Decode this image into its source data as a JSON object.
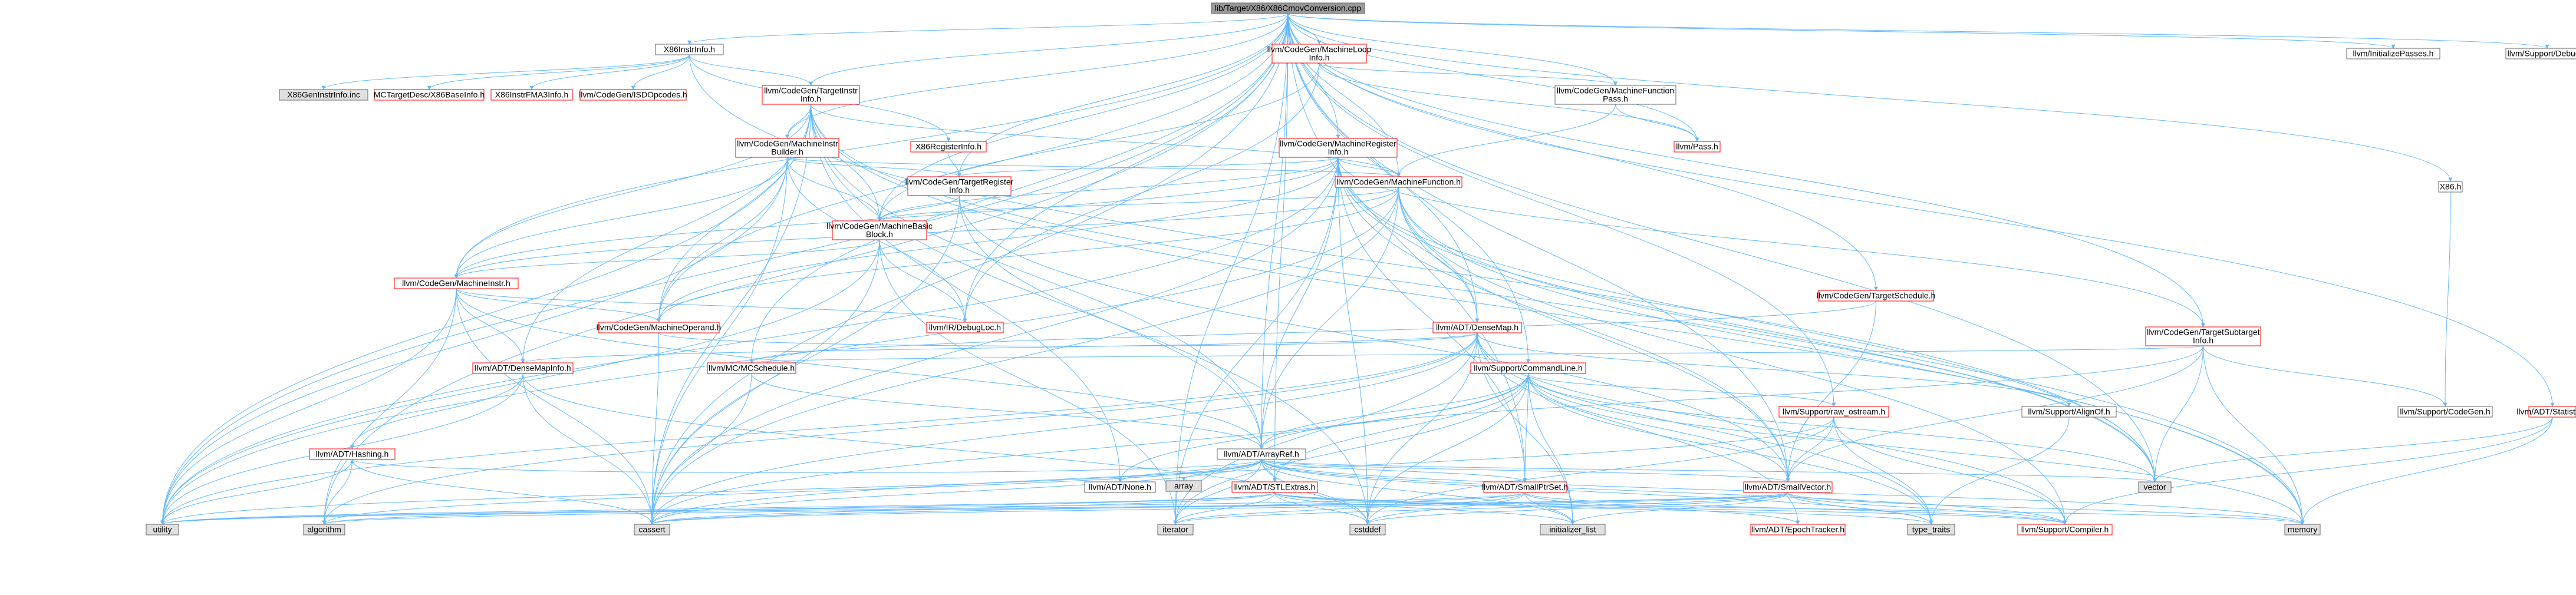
{
  "graph": {
    "root": "lib/Target/X86/X86CmovConversion.cpp",
    "colors": {
      "edge": "#63b8ff",
      "root_fill": "#999999",
      "root_border": "#666666",
      "node_fill": "#ffffff",
      "external_fill": "#e0e0e0",
      "border_normal": "#666666",
      "border_truncated": "#ff0000"
    },
    "nodes": [
      {
        "id": "root",
        "label": "lib/Target/X86/X86CmovConversion.cpp",
        "kind": "root"
      },
      {
        "id": "x86instrinfo",
        "label": "X86InstrInfo.h",
        "kind": "normal"
      },
      {
        "id": "mlinfo",
        "label": "llvm/CodeGen/MachineLoop\nInfo.h",
        "kind": "truncated"
      },
      {
        "id": "initpasses",
        "label": "llvm/InitializePasses.h",
        "kind": "normal"
      },
      {
        "id": "debug",
        "label": "llvm/Support/Debug.h",
        "kind": "normal"
      },
      {
        "id": "genincinc",
        "label": "X86GenInstrInfo.inc",
        "kind": "external"
      },
      {
        "id": "x86baseinfo",
        "label": "MCTargetDesc/X86BaseInfo.h",
        "kind": "truncated"
      },
      {
        "id": "x86fma",
        "label": "X86InstrFMA3Info.h",
        "kind": "truncated"
      },
      {
        "id": "isdopc",
        "label": "llvm/CodeGen/ISDOpcodes.h",
        "kind": "truncated"
      },
      {
        "id": "tii",
        "label": "llvm/CodeGen/TargetInstr\nInfo.h",
        "kind": "truncated"
      },
      {
        "id": "mfp",
        "label": "llvm/CodeGen/MachineFunction\nPass.h",
        "kind": "normal"
      },
      {
        "id": "pass",
        "label": "llvm/Pass.h",
        "kind": "truncated"
      },
      {
        "id": "mrinfo",
        "label": "llvm/CodeGen/MachineRegister\nInfo.h",
        "kind": "truncated"
      },
      {
        "id": "x86reginfo",
        "label": "X86RegisterInfo.h",
        "kind": "truncated"
      },
      {
        "id": "mib",
        "label": "llvm/CodeGen/MachineInstr\nBuilder.h",
        "kind": "truncated"
      },
      {
        "id": "tri",
        "label": "llvm/CodeGen/TargetRegister\nInfo.h",
        "kind": "truncated"
      },
      {
        "id": "mf",
        "label": "llvm/CodeGen/MachineFunction.h",
        "kind": "truncated"
      },
      {
        "id": "x86h",
        "label": "X86.h",
        "kind": "normal"
      },
      {
        "id": "mbb",
        "label": "llvm/CodeGen/MachineBasic\nBlock.h",
        "kind": "truncated"
      },
      {
        "id": "mi",
        "label": "llvm/CodeGen/MachineInstr.h",
        "kind": "truncated"
      },
      {
        "id": "tsched",
        "label": "llvm/CodeGen/TargetSchedule.h",
        "kind": "truncated"
      },
      {
        "id": "mo",
        "label": "llvm/CodeGen/MachineOperand.h",
        "kind": "truncated"
      },
      {
        "id": "debugloc",
        "label": "llvm/IR/DebugLoc.h",
        "kind": "truncated"
      },
      {
        "id": "densemap",
        "label": "llvm/ADT/DenseMap.h",
        "kind": "truncated"
      },
      {
        "id": "tsi",
        "label": "llvm/CodeGen/TargetSubtarget\nInfo.h",
        "kind": "truncated"
      },
      {
        "id": "dmi",
        "label": "llvm/ADT/DenseMapInfo.h",
        "kind": "truncated"
      },
      {
        "id": "mcsched",
        "label": "llvm/MC/MCSchedule.h",
        "kind": "truncated"
      },
      {
        "id": "cmdline",
        "label": "llvm/Support/CommandLine.h",
        "kind": "truncated"
      },
      {
        "id": "rawos",
        "label": "llvm/Support/raw_ostream.h",
        "kind": "truncated"
      },
      {
        "id": "alignof",
        "label": "llvm/Support/AlignOf.h",
        "kind": "normal"
      },
      {
        "id": "codegen",
        "label": "llvm/Support/CodeGen.h",
        "kind": "normal"
      },
      {
        "id": "statistic",
        "label": "llvm/ADT/Statistic.h",
        "kind": "truncated"
      },
      {
        "id": "hashing",
        "label": "llvm/ADT/Hashing.h",
        "kind": "truncated"
      },
      {
        "id": "arrayref",
        "label": "llvm/ADT/ArrayRef.h",
        "kind": "normal"
      },
      {
        "id": "array",
        "label": "array",
        "kind": "external"
      },
      {
        "id": "none",
        "label": "llvm/ADT/None.h",
        "kind": "normal"
      },
      {
        "id": "stlextras",
        "label": "llvm/ADT/STLExtras.h",
        "kind": "truncated"
      },
      {
        "id": "sptrset",
        "label": "llvm/ADT/SmallPtrSet.h",
        "kind": "truncated"
      },
      {
        "id": "svector",
        "label": "llvm/ADT/SmallVector.h",
        "kind": "truncated"
      },
      {
        "id": "vector",
        "label": "vector",
        "kind": "external"
      },
      {
        "id": "utility",
        "label": "utility",
        "kind": "external"
      },
      {
        "id": "algorithm",
        "label": "algorithm",
        "kind": "external"
      },
      {
        "id": "cassert",
        "label": "cassert",
        "kind": "external"
      },
      {
        "id": "iterator",
        "label": "iterator",
        "kind": "external"
      },
      {
        "id": "cstddef",
        "label": "cstddef",
        "kind": "external"
      },
      {
        "id": "initlist",
        "label": "initializer_list",
        "kind": "external"
      },
      {
        "id": "epoch",
        "label": "llvm/ADT/EpochTracker.h",
        "kind": "truncated"
      },
      {
        "id": "typetraits",
        "label": "type_traits",
        "kind": "external"
      },
      {
        "id": "compiler",
        "label": "llvm/Support/Compiler.h",
        "kind": "truncated"
      },
      {
        "id": "memory",
        "label": "memory",
        "kind": "external"
      }
    ],
    "edges": [
      [
        "root",
        "x86instrinfo"
      ],
      [
        "root",
        "mlinfo"
      ],
      [
        "root",
        "initpasses"
      ],
      [
        "root",
        "debug"
      ],
      [
        "root",
        "tii"
      ],
      [
        "root",
        "mfp"
      ],
      [
        "root",
        "pass"
      ],
      [
        "root",
        "mrinfo"
      ],
      [
        "root",
        "mib"
      ],
      [
        "root",
        "tri"
      ],
      [
        "root",
        "mf"
      ],
      [
        "root",
        "x86h"
      ],
      [
        "root",
        "mbb"
      ],
      [
        "root",
        "mi"
      ],
      [
        "root",
        "tsched"
      ],
      [
        "root",
        "mo"
      ],
      [
        "root",
        "debugloc"
      ],
      [
        "root",
        "densemap"
      ],
      [
        "root",
        "tsi"
      ],
      [
        "root",
        "mcsched"
      ],
      [
        "root",
        "cmdline"
      ],
      [
        "root",
        "rawos"
      ],
      [
        "root",
        "statistic"
      ],
      [
        "root",
        "arrayref"
      ],
      [
        "root",
        "stlextras"
      ],
      [
        "root",
        "sptrset"
      ],
      [
        "root",
        "svector"
      ],
      [
        "root",
        "utility"
      ],
      [
        "root",
        "algorithm"
      ],
      [
        "root",
        "cassert"
      ],
      [
        "root",
        "iterator"
      ],
      [
        "root",
        "vector"
      ],
      [
        "x86instrinfo",
        "genincinc"
      ],
      [
        "x86instrinfo",
        "x86baseinfo"
      ],
      [
        "x86instrinfo",
        "x86fma"
      ],
      [
        "x86instrinfo",
        "isdopc"
      ],
      [
        "x86instrinfo",
        "tii"
      ],
      [
        "x86instrinfo",
        "x86reginfo"
      ],
      [
        "x86instrinfo",
        "vector"
      ],
      [
        "mlinfo",
        "mfp"
      ],
      [
        "mlinfo",
        "pass"
      ],
      [
        "mlinfo",
        "mbb"
      ],
      [
        "mlinfo",
        "debugloc"
      ],
      [
        "mfp",
        "mf"
      ],
      [
        "mfp",
        "pass"
      ],
      [
        "tii",
        "mf"
      ],
      [
        "tii",
        "mbb"
      ],
      [
        "tii",
        "mi"
      ],
      [
        "tii",
        "mo"
      ],
      [
        "tii",
        "mib"
      ],
      [
        "tii",
        "dmi"
      ],
      [
        "tii",
        "arrayref"
      ],
      [
        "tii",
        "none"
      ],
      [
        "tii",
        "utility"
      ],
      [
        "tii",
        "cassert"
      ],
      [
        "tii",
        "cstddef"
      ],
      [
        "tii",
        "memory"
      ],
      [
        "tii",
        "vector"
      ],
      [
        "mrinfo",
        "mf"
      ],
      [
        "mrinfo",
        "mbb"
      ],
      [
        "mrinfo",
        "mi"
      ],
      [
        "mrinfo",
        "mo"
      ],
      [
        "mrinfo",
        "tri"
      ],
      [
        "mrinfo",
        "tsi"
      ],
      [
        "mrinfo",
        "densemap"
      ],
      [
        "mrinfo",
        "arrayref"
      ],
      [
        "mrinfo",
        "svector"
      ],
      [
        "mrinfo",
        "sptrset"
      ],
      [
        "mrinfo",
        "cassert"
      ],
      [
        "mrinfo",
        "cstddef"
      ],
      [
        "mrinfo",
        "iterator"
      ],
      [
        "mrinfo",
        "memory"
      ],
      [
        "mrinfo",
        "utility"
      ],
      [
        "mrinfo",
        "vector"
      ],
      [
        "x86reginfo",
        "tri"
      ],
      [
        "mib",
        "mf"
      ],
      [
        "mib",
        "mbb"
      ],
      [
        "mib",
        "mi"
      ],
      [
        "mib",
        "mo"
      ],
      [
        "mib",
        "tri"
      ],
      [
        "mib",
        "debugloc"
      ],
      [
        "mib",
        "cassert"
      ],
      [
        "mib",
        "cstdint"
      ],
      [
        "mib",
        "utility"
      ],
      [
        "tri",
        "mbb"
      ],
      [
        "tri",
        "arrayref"
      ],
      [
        "tri",
        "svector"
      ],
      [
        "tri",
        "cassert"
      ],
      [
        "mf",
        "mbb"
      ],
      [
        "mf",
        "mi"
      ],
      [
        "mf",
        "mo"
      ],
      [
        "mf",
        "densemap"
      ],
      [
        "mf",
        "arrayref"
      ],
      [
        "mf",
        "svector"
      ],
      [
        "mf",
        "compiler"
      ],
      [
        "mf",
        "cassert"
      ],
      [
        "mf",
        "cstdint"
      ],
      [
        "mf",
        "memory"
      ],
      [
        "mf",
        "utility"
      ],
      [
        "mf",
        "vector"
      ],
      [
        "x86h",
        "codegen"
      ],
      [
        "mbb",
        "mi"
      ],
      [
        "mbb",
        "debugloc"
      ],
      [
        "mbb",
        "cassert"
      ],
      [
        "mbb",
        "iterator"
      ],
      [
        "mbb",
        "cstdint"
      ],
      [
        "mbb",
        "utility"
      ],
      [
        "mi",
        "mo"
      ],
      [
        "mi",
        "debugloc"
      ],
      [
        "mi",
        "dmi"
      ],
      [
        "mi",
        "arrayref"
      ],
      [
        "mi",
        "algorithm"
      ],
      [
        "mi",
        "cassert"
      ],
      [
        "mi",
        "utility"
      ],
      [
        "mo",
        "densemap"
      ],
      [
        "mo",
        "cassert"
      ],
      [
        "densemap",
        "dmi"
      ],
      [
        "densemap",
        "epoch"
      ],
      [
        "densemap",
        "alignof"
      ],
      [
        "densemap",
        "compiler"
      ],
      [
        "densemap",
        "algorithm"
      ],
      [
        "densemap",
        "cassert"
      ],
      [
        "densemap",
        "cstddef"
      ],
      [
        "densemap",
        "initlist"
      ],
      [
        "densemap",
        "iterator"
      ],
      [
        "densemap",
        "new"
      ],
      [
        "densemap",
        "type_traits"
      ],
      [
        "densemap",
        "utility"
      ],
      [
        "densemap",
        "typetraits"
      ],
      [
        "tsi",
        "arrayref"
      ],
      [
        "tsi",
        "svector"
      ],
      [
        "tsi",
        "codegen"
      ],
      [
        "tsi",
        "mcsched"
      ],
      [
        "tsi",
        "vector"
      ],
      [
        "tsi",
        "memory"
      ],
      [
        "tsched",
        "svector"
      ],
      [
        "tsched",
        "mcsched"
      ],
      [
        "dmi",
        "hashing"
      ],
      [
        "dmi",
        "cassert"
      ],
      [
        "dmi",
        "cstddef"
      ],
      [
        "dmi",
        "utility"
      ],
      [
        "mcsched",
        "arrayref"
      ],
      [
        "mcsched",
        "cassert"
      ],
      [
        "cmdline",
        "arrayref"
      ],
      [
        "cmdline",
        "none"
      ],
      [
        "cmdline",
        "stlextras"
      ],
      [
        "cmdline",
        "sptrset"
      ],
      [
        "cmdline",
        "svector"
      ],
      [
        "cmdline",
        "rawos"
      ],
      [
        "cmdline",
        "cassert"
      ],
      [
        "cmdline",
        "initlist"
      ],
      [
        "cmdline",
        "typetraits"
      ],
      [
        "cmdline",
        "vector"
      ],
      [
        "cmdline",
        "memory"
      ],
      [
        "cmdline",
        "cstddef"
      ],
      [
        "cmdline",
        "iterator"
      ],
      [
        "rawos",
        "svector"
      ],
      [
        "rawos",
        "cassert"
      ],
      [
        "rawos",
        "cstddef"
      ],
      [
        "rawos",
        "typetraits"
      ],
      [
        "rawos",
        "compiler"
      ],
      [
        "alignof",
        "typetraits"
      ],
      [
        "statistic",
        "compiler"
      ],
      [
        "statistic",
        "memory"
      ],
      [
        "statistic",
        "vector"
      ],
      [
        "hashing",
        "algorithm"
      ],
      [
        "hashing",
        "cassert"
      ],
      [
        "hashing",
        "utility"
      ],
      [
        "arrayref",
        "hashing"
      ],
      [
        "arrayref",
        "none"
      ],
      [
        "arrayref",
        "stlextras"
      ],
      [
        "arrayref",
        "sptrset"
      ],
      [
        "arrayref",
        "svector"
      ],
      [
        "arrayref",
        "array"
      ],
      [
        "arrayref",
        "algorithm"
      ],
      [
        "arrayref",
        "cassert"
      ],
      [
        "arrayref",
        "cstddef"
      ],
      [
        "arrayref",
        "initlist"
      ],
      [
        "arrayref",
        "iterator"
      ],
      [
        "arrayref",
        "memory"
      ],
      [
        "arrayref",
        "typetraits"
      ],
      [
        "arrayref",
        "vector"
      ],
      [
        "arrayref",
        "compiler"
      ],
      [
        "arrayref",
        "utility"
      ],
      [
        "stlextras",
        "utility"
      ],
      [
        "stlextras",
        "algorithm"
      ],
      [
        "stlextras",
        "cassert"
      ],
      [
        "stlextras",
        "cstddef"
      ],
      [
        "stlextras",
        "initlist"
      ],
      [
        "stlextras",
        "iterator"
      ],
      [
        "stlextras",
        "memory"
      ],
      [
        "stlextras",
        "typetraits"
      ],
      [
        "stlextras",
        "compiler"
      ],
      [
        "sptrset",
        "epoch"
      ],
      [
        "sptrset",
        "compiler"
      ],
      [
        "sptrset",
        "cassert"
      ],
      [
        "sptrset",
        "cstddef"
      ],
      [
        "sptrset",
        "initlist"
      ],
      [
        "sptrset",
        "iterator"
      ],
      [
        "sptrset",
        "utility"
      ],
      [
        "svector",
        "compiler"
      ],
      [
        "svector",
        "algorithm"
      ],
      [
        "svector",
        "cassert"
      ],
      [
        "svector",
        "cstddef"
      ],
      [
        "svector",
        "initlist"
      ],
      [
        "svector",
        "iterator"
      ],
      [
        "svector",
        "memory"
      ],
      [
        "svector",
        "typetraits"
      ],
      [
        "svector",
        "utility"
      ]
    ]
  }
}
